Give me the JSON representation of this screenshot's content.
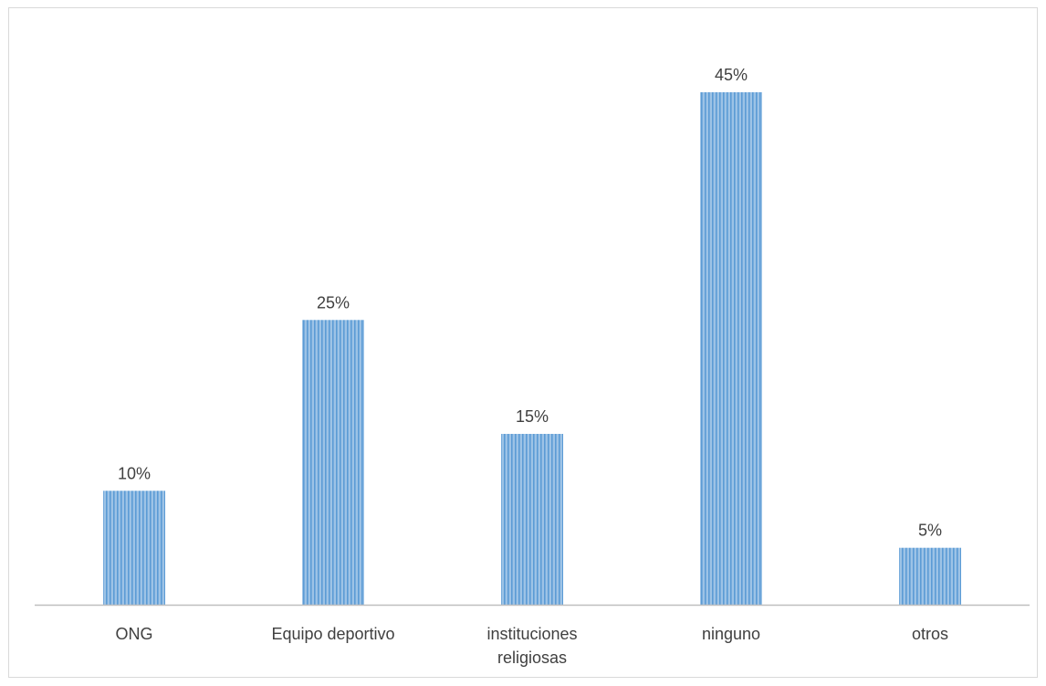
{
  "chart_data": {
    "type": "bar",
    "categories": [
      [
        "ONG"
      ],
      [
        "Equipo deportivo"
      ],
      [
        "instituciones",
        "religiosas"
      ],
      [
        "ninguno"
      ],
      [
        "otros"
      ]
    ],
    "values": [
      10,
      25,
      15,
      45,
      5
    ],
    "data_labels": [
      "10%",
      "25%",
      "15%",
      "45%",
      "5%"
    ],
    "title": "",
    "xlabel": "",
    "ylabel": "",
    "ylim": [
      0,
      45
    ],
    "grid": false,
    "legend": "none",
    "bar_fill": "striped-vertical",
    "colors": {
      "bar_base": "#9dc3e6",
      "bar_stripe": "#5b9bd5",
      "axis": "#bfbfbf",
      "text": "#404040",
      "frame": "#d9d9d9"
    }
  }
}
